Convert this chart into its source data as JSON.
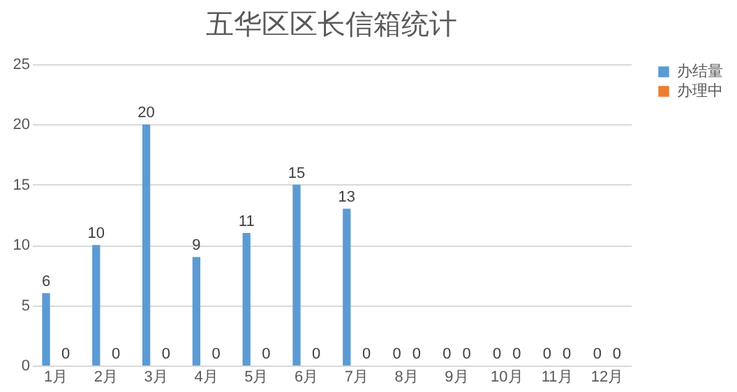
{
  "chart_data": {
    "type": "bar",
    "title": "五华区区长信箱统计",
    "categories": [
      "1月",
      "2月",
      "3月",
      "4月",
      "5月",
      "6月",
      "7月",
      "8月",
      "9月",
      "10月",
      "11月",
      "12月"
    ],
    "series": [
      {
        "name": "办结量",
        "color": "#5b9bd5",
        "values": [
          6,
          10,
          20,
          9,
          11,
          15,
          13,
          0,
          0,
          0,
          0,
          0
        ]
      },
      {
        "name": "办理中",
        "color": "#ed7d31",
        "values": [
          0,
          0,
          0,
          0,
          0,
          0,
          0,
          0,
          0,
          0,
          0,
          0
        ]
      }
    ],
    "ylim": [
      0,
      25
    ],
    "yticks": [
      0,
      5,
      10,
      15,
      20,
      25
    ],
    "grid": "y",
    "legend": "right",
    "data_labels": true
  }
}
